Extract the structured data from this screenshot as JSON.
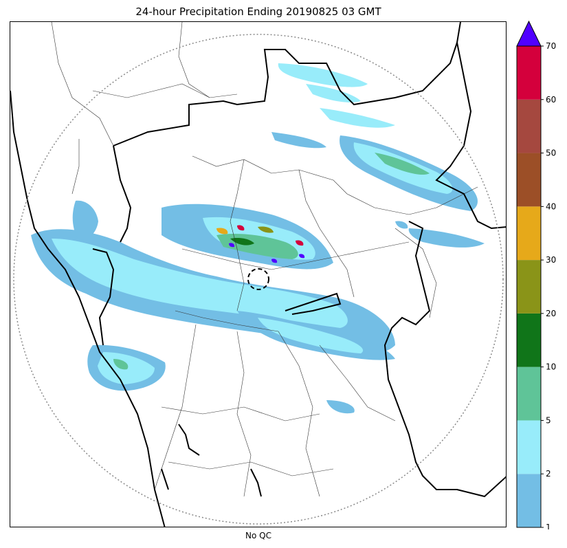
{
  "title": "24-hour Precipitation Ending 20190825 03 GMT",
  "xlabel": "No QC",
  "colorbar": {
    "levels": [
      1,
      2,
      5,
      10,
      20,
      30,
      40,
      50,
      60,
      70
    ],
    "tick_labels": [
      "1",
      "2",
      "5",
      "10",
      "20",
      "30",
      "40",
      "50",
      "60",
      "70"
    ],
    "colors": [
      "#73bee5",
      "#98ecfa",
      "#5fc498",
      "#107519",
      "#8a9418",
      "#e6a91a",
      "#9c4f27",
      "#a5483f",
      "#d4003c"
    ],
    "extend_color": "#5000ff"
  },
  "map": {
    "range_ring_color": "#888888",
    "radar_marker": "dashed-circle",
    "boundary_color": "#000000"
  }
}
